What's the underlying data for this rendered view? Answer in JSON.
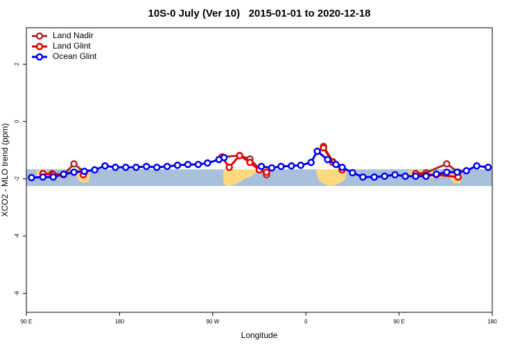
{
  "chart_data": {
    "type": "line",
    "title": "10S-0 July (Ver 10)   2015-01-01 to 2020-12-18",
    "xlabel": "Longitude",
    "ylabel": "XCO2 - MLO trend (ppm)",
    "xlim": [
      90,
      540
    ],
    "ylim": [
      -6.66,
      3.27
    ],
    "xticks": [
      {
        "value": 90,
        "label": "90 E"
      },
      180,
      {
        "value": 270,
        "label": "90 W"
      },
      {
        "value": 360,
        "label": "0"
      },
      {
        "value": 450,
        "label": "90 E"
      },
      {
        "value": 540,
        "label": "180"
      }
    ],
    "yticks": [
      -6,
      -4,
      -2,
      0,
      2
    ],
    "legend": "upper left",
    "series": [
      {
        "name": "Land Nadir",
        "color": "#a52a2a",
        "x": [
          106,
          115,
          126,
          136,
          146,
          null,
          279,
          296,
          306,
          315,
          322,
          null,
          377,
          386,
          395,
          null,
          466,
          476,
          496,
          507
        ],
        "values": [
          -1.82,
          -1.82,
          -1.86,
          -1.48,
          -1.77,
          null,
          -1.24,
          -1.19,
          -1.31,
          -1.65,
          -1.86,
          null,
          -0.87,
          -1.4,
          -1.65,
          null,
          -1.82,
          -1.79,
          -1.48,
          -1.77
        ]
      },
      {
        "name": "Land Glint",
        "color": "#e60000",
        "x": [
          106,
          116,
          126,
          null,
          145,
          null,
          279,
          286,
          296,
          306,
          315,
          322,
          null,
          377,
          386,
          395,
          null,
          466,
          476,
          486,
          507
        ],
        "values": [
          -1.82,
          -1.86,
          -1.86,
          null,
          -1.86,
          null,
          -1.24,
          -1.6,
          -1.19,
          -1.43,
          -1.69,
          -1.77,
          null,
          -0.92,
          -1.43,
          -1.69,
          null,
          -1.82,
          -1.86,
          -1.86,
          -1.94
        ]
      },
      {
        "name": "Ocean Glint",
        "color": "#0000ee",
        "x": [
          95,
          106,
          116,
          126,
          136,
          146,
          156,
          166,
          176,
          186,
          196,
          206,
          216,
          226,
          236,
          246,
          256,
          265,
          276,
          281,
          null,
          317,
          327,
          336,
          346,
          355,
          365,
          371,
          381,
          389,
          395,
          405,
          415,
          426,
          436,
          446,
          456,
          466,
          476,
          486,
          496,
          506,
          515,
          525,
          536
        ],
        "values": [
          -1.96,
          -1.94,
          -1.94,
          -1.84,
          -1.77,
          -1.74,
          -1.69,
          -1.55,
          -1.6,
          -1.6,
          -1.6,
          -1.57,
          -1.6,
          -1.57,
          -1.53,
          -1.5,
          -1.5,
          -1.45,
          -1.33,
          -1.26,
          null,
          -1.57,
          -1.62,
          -1.57,
          -1.55,
          -1.53,
          -1.43,
          -1.04,
          -1.33,
          -1.5,
          -1.6,
          -1.79,
          -1.94,
          -1.94,
          -1.91,
          -1.86,
          -1.91,
          -1.91,
          -1.91,
          -1.84,
          -1.77,
          -1.77,
          -1.72,
          -1.55,
          -1.6
        ]
      }
    ]
  }
}
